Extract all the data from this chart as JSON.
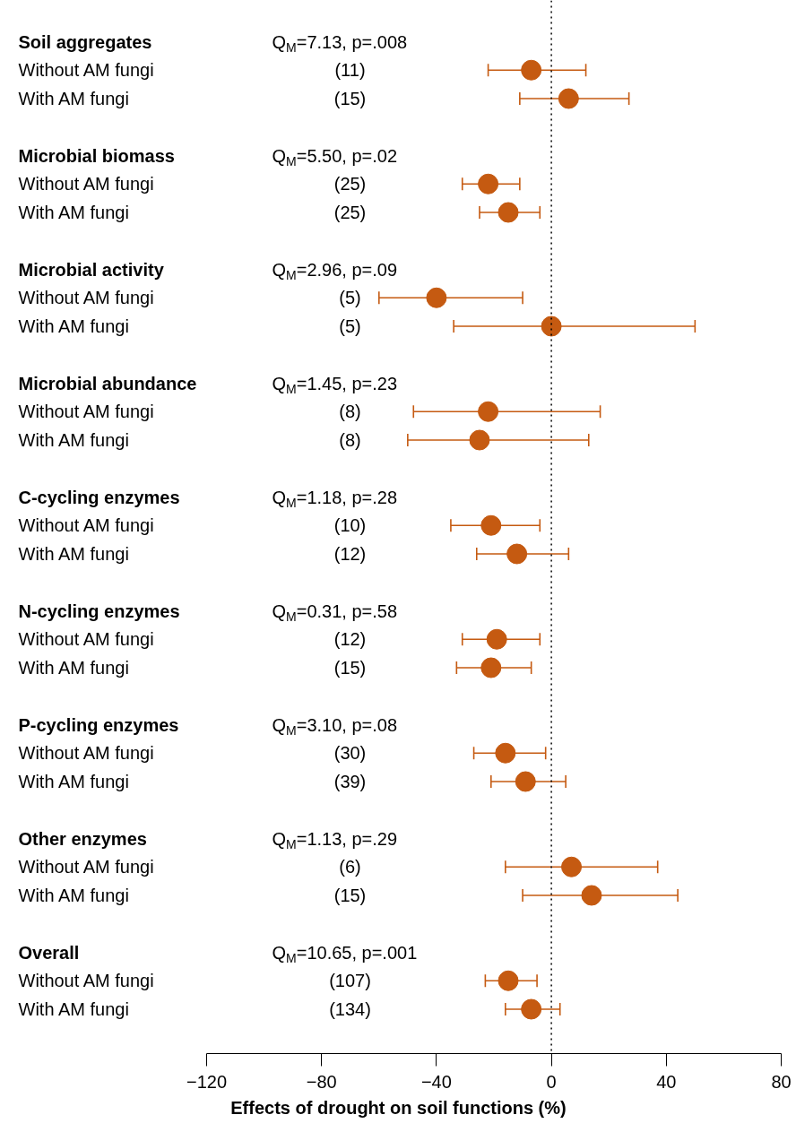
{
  "chart_data": {
    "type": "scatter",
    "orientation": "horizontal",
    "xlabel": "Effects of drought on soil functions (%)",
    "categories": [
      "Soil aggregates",
      "Without AM fungi",
      "With AM fungi",
      "Microbial biomass",
      "Without AM fungi",
      "With AM fungi",
      "Microbial activity",
      "Without AM fungi",
      "With AM fungi",
      "Microbial abundance",
      "Without AM fungi",
      "With AM fungi",
      "C-cycling enzymes",
      "Without AM fungi",
      "With AM fungi",
      "N-cycling enzymes",
      "Without AM fungi",
      "With AM fungi",
      "P-cycling enzymes",
      "Without AM fungi",
      "With AM fungi",
      "Other enzymes",
      "Without AM fungi",
      "With AM fungi",
      "Overall",
      "Without AM fungi",
      "With AM fungi"
    ],
    "y2_categories": [
      "Q$_{M}$=7.13, p=.008",
      "(11)",
      "(15)",
      "Q$_{M}$=5.50, p=.02",
      "(25)",
      "(25)",
      "Q$_{M}$=2.96, p=.09",
      "(5)",
      "(5)",
      "Q$_{M}$=1.45, p=.23",
      "(8)",
      "(8)",
      "Q$_{M}$=1.18, p=.28",
      "(10)",
      "(12)",
      "Q$_{M}$=0.31, p=.58",
      "(12)",
      "(15)",
      "Q$_{M}$=3.10, p=.08",
      "(30)",
      "(39)",
      "Q$_{M}$=1.13, p=.29",
      "(6)",
      "(15)",
      "Q$_{M}$=10.65, p=.001",
      "(107)",
      "(134)"
    ],
    "values": [
      null,
      -7,
      6,
      null,
      -22,
      -15,
      null,
      -40,
      0,
      null,
      -22,
      -25,
      null,
      -21,
      -12,
      null,
      -19,
      -21,
      null,
      -16,
      -9,
      null,
      7,
      14,
      null,
      -15,
      -7
    ],
    "errors": [
      null,
      [
        -22,
        12
      ],
      [
        -11,
        27
      ],
      null,
      [
        -31,
        -11
      ],
      [
        -25,
        -4
      ],
      null,
      [
        -60,
        -10
      ],
      [
        -34,
        50
      ],
      null,
      [
        -48,
        17
      ],
      [
        -50,
        13
      ],
      null,
      [
        -35,
        -4
      ],
      [
        -26,
        6
      ],
      null,
      [
        -31,
        -4
      ],
      [
        -33,
        -7
      ],
      null,
      [
        -27,
        -2
      ],
      [
        -21,
        5
      ],
      null,
      [
        -16,
        37
      ],
      [
        -10,
        44
      ],
      null,
      [
        -23,
        -5
      ],
      [
        -16,
        3
      ]
    ],
    "color": "#c55a11",
    "marker": "circle",
    "xlim": [
      -120,
      80
    ],
    "xticks": [
      {
        "value": -120,
        "label": "−120"
      },
      {
        "value": -80,
        "label": "−80"
      },
      {
        "value": -40,
        "label": "−40"
      },
      0,
      40,
      80
    ],
    "ref_lines": [
      {
        "axis": "x",
        "value": 0,
        "line_style": "dotted",
        "color": "#000000"
      }
    ],
    "grid": false
  }
}
